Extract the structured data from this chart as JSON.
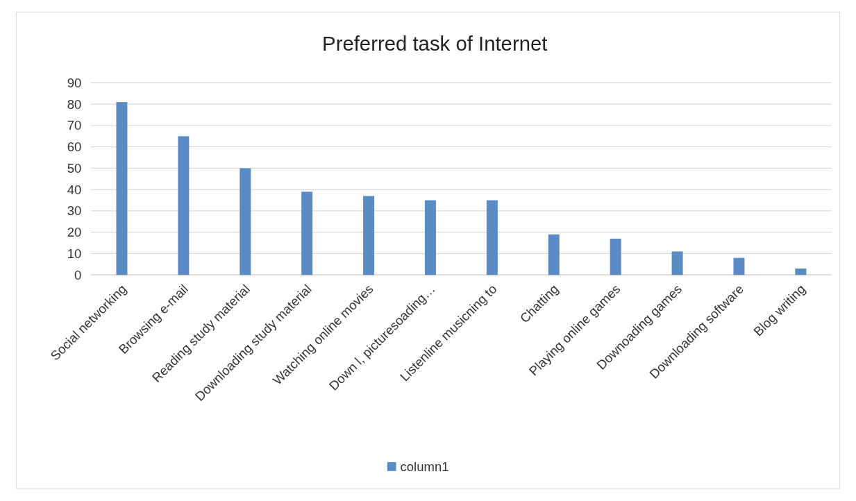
{
  "chart_data": {
    "type": "bar",
    "title": "Preferred task of Internet",
    "categories": [
      "Social networking",
      "Browsing e-mail",
      "Reading study material",
      "Downloading study material",
      "Watching online movies",
      "Down l, picturesoading…",
      "Listenline musicning to",
      "Chatting",
      "Playing online games",
      "Downoading games",
      "Downloading software",
      "Blog writing"
    ],
    "series": [
      {
        "name": "column1",
        "color": "#5b8bc5",
        "values": [
          81,
          65,
          50,
          39,
          37,
          35,
          35,
          19,
          17,
          11,
          8,
          3
        ]
      }
    ],
    "ylim": [
      0,
      90
    ],
    "yticks": [
      0,
      10,
      20,
      30,
      40,
      50,
      60,
      70,
      80,
      90
    ],
    "grid": "y",
    "legend": "bottom"
  }
}
